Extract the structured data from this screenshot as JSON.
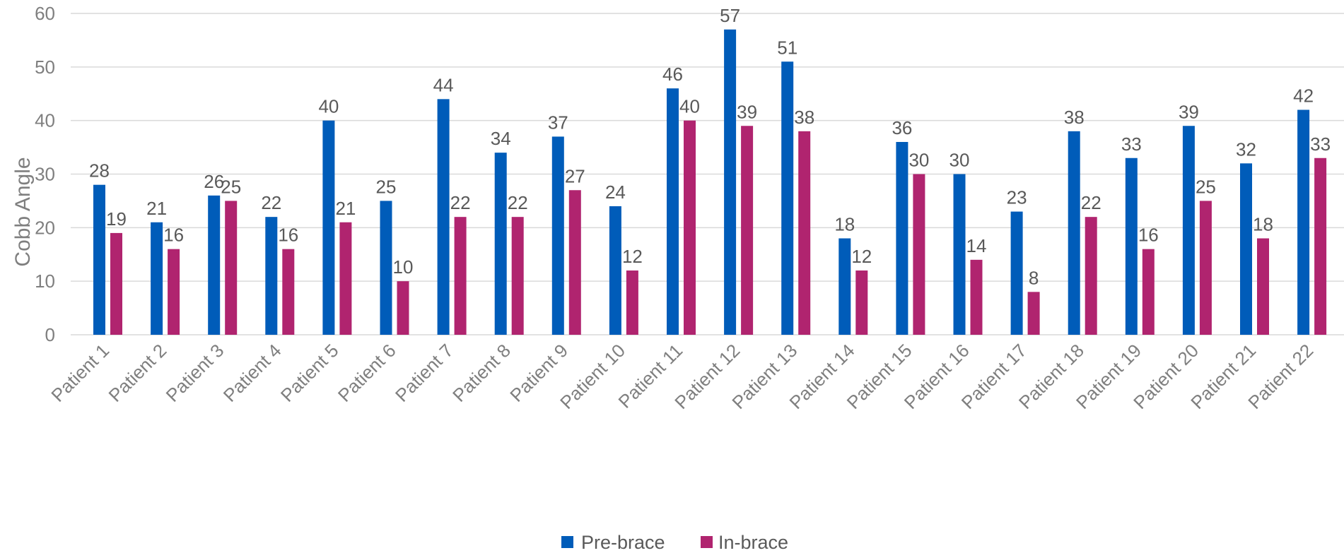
{
  "chart_data": {
    "type": "bar",
    "title": "",
    "xlabel": "",
    "ylabel": "Cobb Angle",
    "ylim": [
      0,
      60
    ],
    "yticks": [
      0,
      10,
      20,
      30,
      40,
      50,
      60
    ],
    "grid": true,
    "legend_position": "bottom",
    "categories": [
      "Patient 1",
      "Patient 2",
      "Patient 3",
      "Patient 4",
      "Patient 5",
      "Patient 6",
      "Patient 7",
      "Patient 8",
      "Patient 9",
      "Patient 10",
      "Patient 11",
      "Patient 12",
      "Patient 13",
      "Patient 14",
      "Patient 15",
      "Patient 16",
      "Patient 17",
      "Patient 18",
      "Patient 19",
      "Patient 20",
      "Patient 21",
      "Patient 22"
    ],
    "series": [
      {
        "name": "Pre-brace",
        "color": "#005cb9",
        "values": [
          28,
          21,
          26,
          22,
          40,
          25,
          44,
          34,
          37,
          24,
          46,
          57,
          51,
          18,
          36,
          30,
          23,
          38,
          33,
          39,
          32,
          42
        ]
      },
      {
        "name": "In-brace",
        "color": "#b0246f",
        "values": [
          19,
          16,
          25,
          16,
          21,
          10,
          22,
          22,
          27,
          12,
          40,
          39,
          38,
          12,
          30,
          14,
          8,
          22,
          16,
          25,
          18,
          33
        ]
      }
    ]
  }
}
